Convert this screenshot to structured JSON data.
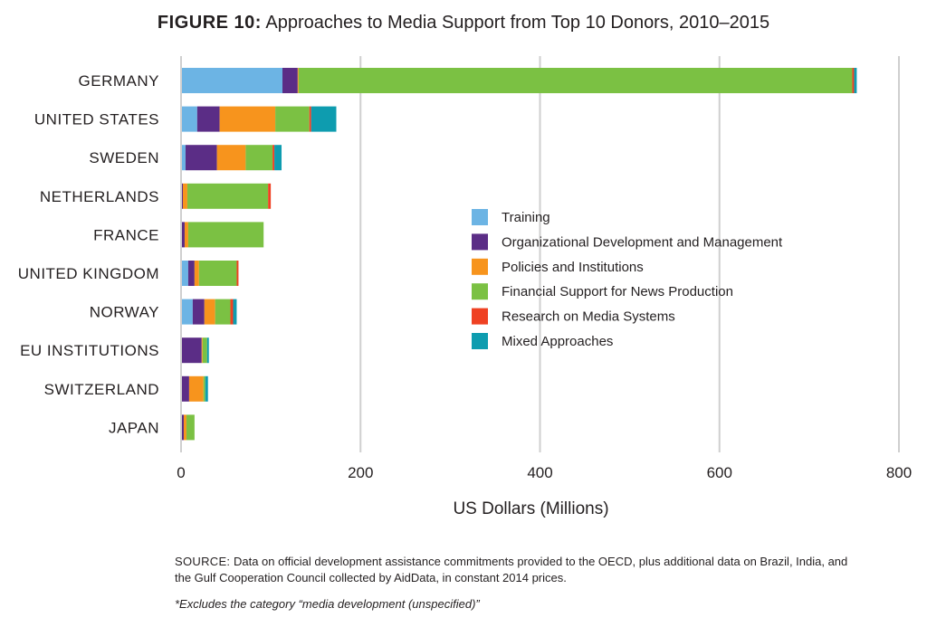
{
  "figure": {
    "title_tag": "FIGURE 10:",
    "title_text": "Approaches to Media Support from Top 10 Donors, 2010–2015"
  },
  "chart_data": {
    "type": "bar",
    "orientation": "horizontal",
    "stacked": true,
    "title": "Approaches to Media Support from Top 10 Donors, 2010–2015",
    "xlabel": "US Dollars (Millions)",
    "ylabel": "",
    "xlim": [
      0,
      800
    ],
    "xticks": [
      0,
      200,
      400,
      600,
      800
    ],
    "grid": "vertical",
    "legend_position": "center-right",
    "categories": [
      "GERMANY",
      "UNITED STATES",
      "SWEDEN",
      "NETHERLANDS",
      "FRANCE",
      "UNITED KINGDOM",
      "NORWAY",
      "EU INSTITUTIONS",
      "SWITZERLAND",
      "JAPAN"
    ],
    "series": [
      {
        "name": "Training",
        "color": "#6cb4e4",
        "values": [
          113,
          18,
          5,
          1,
          1,
          8,
          13,
          1,
          1,
          1
        ]
      },
      {
        "name": "Organizational Development and Management",
        "color": "#5b2d86",
        "values": [
          17,
          25,
          35,
          1,
          3,
          7,
          13,
          22,
          8,
          2
        ]
      },
      {
        "name": "Policies and Institutions",
        "color": "#f7941d",
        "values": [
          1,
          62,
          32,
          5,
          4,
          5,
          12,
          1,
          16,
          3
        ]
      },
      {
        "name": "Financial Support for News Production",
        "color": "#7bc143",
        "values": [
          617,
          38,
          30,
          90,
          84,
          42,
          17,
          5,
          2,
          9
        ]
      },
      {
        "name": "Research on Media Systems",
        "color": "#ef4123",
        "values": [
          2,
          2,
          2,
          3,
          0,
          2,
          3,
          0,
          0,
          0
        ]
      },
      {
        "name": "Mixed Approaches",
        "color": "#0e9caf",
        "values": [
          3,
          28,
          8,
          0,
          0,
          0,
          4,
          2,
          3,
          0
        ]
      }
    ]
  },
  "source": {
    "label": "SOURCE:",
    "text": "Data on official development assistance commitments provided to the OECD, plus additional data on Brazil, India, and the Gulf Cooperation Council collected by AidData, in constant 2014 prices."
  },
  "footnote": "*Excludes the category “media development (unspecified)”"
}
